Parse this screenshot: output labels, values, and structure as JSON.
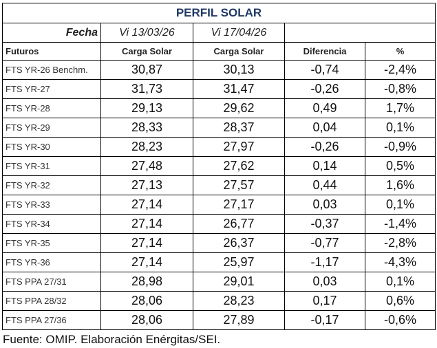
{
  "title": "PERFIL SOLAR",
  "fecha_label": "Fecha",
  "dates": [
    "Vi 13/03/26",
    "Vi 17/04/26"
  ],
  "headers": [
    "Futuros",
    "Carga Solar",
    "Carga Solar",
    "Diferencia",
    "%"
  ],
  "rows": [
    [
      "FTS YR-26 Benchm.",
      "30,87",
      "30,13",
      "-0,74",
      "-2,4%"
    ],
    [
      "FTS YR-27",
      "31,73",
      "31,47",
      "-0,26",
      "-0,8%"
    ],
    [
      "FTS YR-28",
      "29,13",
      "29,62",
      "0,49",
      "1,7%"
    ],
    [
      "FTS YR-29",
      "28,33",
      "28,37",
      "0,04",
      "0,1%"
    ],
    [
      "FTS YR-30",
      "28,23",
      "27,97",
      "-0,26",
      "-0,9%"
    ],
    [
      "FTS YR-31",
      "27,48",
      "27,62",
      "0,14",
      "0,5%"
    ],
    [
      "FTS YR-32",
      "27,13",
      "27,57",
      "0,44",
      "1,6%"
    ],
    [
      "FTS YR-33",
      "27,14",
      "27,17",
      "0,03",
      "0,1%"
    ],
    [
      "FTS YR-34",
      "27,14",
      "26,77",
      "-0,37",
      "-1,4%"
    ],
    [
      "FTS YR-35",
      "27,14",
      "26,37",
      "-0,77",
      "-2,8%"
    ],
    [
      "FTS YR-36",
      "27,14",
      "25,97",
      "-1,17",
      "-4,3%"
    ],
    [
      "FTS PPA 27/31",
      "28,98",
      "29,01",
      "0,03",
      "0,1%"
    ],
    [
      "FTS PPA 28/32",
      "28,06",
      "28,23",
      "0,17",
      "0,6%"
    ],
    [
      "FTS PPA 27/36",
      "28,06",
      "27,89",
      "-0,17",
      "-0,6%"
    ]
  ],
  "footer": "Fuente: OMIP. Elaboración Enérgitas/SEI."
}
